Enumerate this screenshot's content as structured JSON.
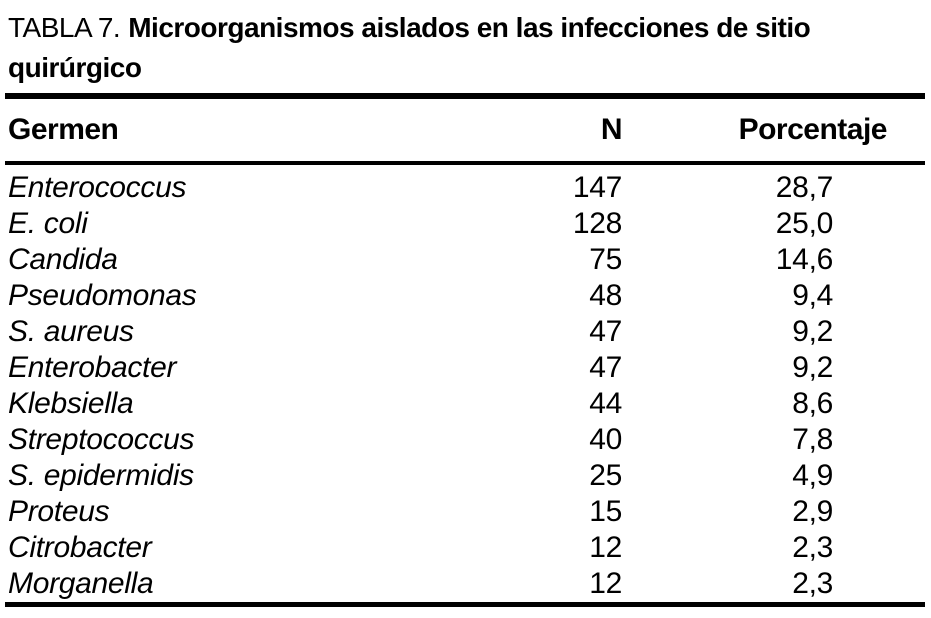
{
  "table": {
    "caption_prefix": "TABLA 7.",
    "caption_line1_bold": "Microorganismos aislados en las infecciones de sitio",
    "caption_line2_bold": "quirúrgico",
    "columns": {
      "germen": "Germen",
      "n": "N",
      "porcentaje": "Porcentaje"
    },
    "rows": [
      {
        "germen": "Enterococcus",
        "n": "147",
        "porcentaje": "28,7"
      },
      {
        "germen": "E. coli",
        "n": "128",
        "porcentaje": "25,0"
      },
      {
        "germen": "Candida",
        "n": "75",
        "porcentaje": "14,6"
      },
      {
        "germen": "Pseudomonas",
        "n": "48",
        "porcentaje": "9,4"
      },
      {
        "germen": "S. aureus",
        "n": "47",
        "porcentaje": "9,2"
      },
      {
        "germen": "Enterobacter",
        "n": "47",
        "porcentaje": "9,2"
      },
      {
        "germen": "Klebsiella",
        "n": "44",
        "porcentaje": "8,6"
      },
      {
        "germen": "Streptococcus",
        "n": "40",
        "porcentaje": "7,8"
      },
      {
        "germen": "S. epidermidis",
        "n": "25",
        "porcentaje": "4,9"
      },
      {
        "germen": "Proteus",
        "n": "15",
        "porcentaje": "2,9"
      },
      {
        "germen": "Citrobacter",
        "n": "12",
        "porcentaje": "2,3"
      },
      {
        "germen": "Morganella",
        "n": "12",
        "porcentaje": "2,3"
      }
    ]
  },
  "colors": {
    "background": "#ffffff",
    "text": "#000000",
    "rule": "#000000"
  }
}
